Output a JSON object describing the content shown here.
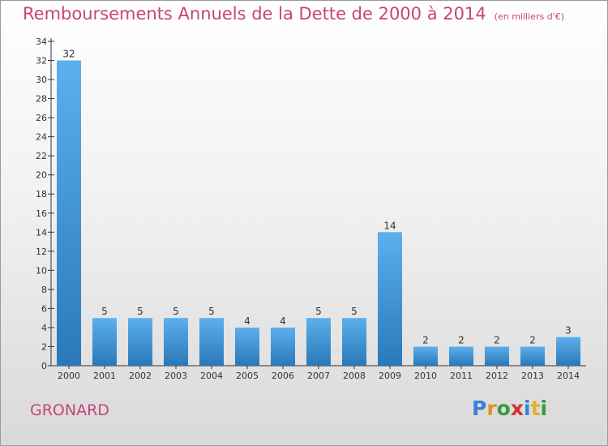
{
  "title": "Remboursements Annuels de la Dette de 2000 à 2014",
  "unit": "(en milliers d'€)",
  "commune": "GRONARD",
  "brand": {
    "letters": [
      {
        "ch": "P",
        "color": "#3b7fd6"
      },
      {
        "ch": "r",
        "color": "#e0912a"
      },
      {
        "ch": "o",
        "color": "#3b9a3b"
      },
      {
        "ch": "x",
        "color": "#d4332e"
      },
      {
        "ch": "i",
        "color": "#3b7fd6"
      },
      {
        "ch": "t",
        "color": "#e0b12a"
      },
      {
        "ch": "i",
        "color": "#3b9a3b"
      }
    ]
  },
  "colors": {
    "bar_top": "#5cb0ec",
    "bar_bottom": "#2a78b8",
    "title": "#c8437a"
  },
  "chart_data": {
    "type": "bar",
    "categories": [
      "2000",
      "2001",
      "2002",
      "2003",
      "2004",
      "2005",
      "2006",
      "2007",
      "2008",
      "2009",
      "2010",
      "2011",
      "2012",
      "2013",
      "2014"
    ],
    "values": [
      32,
      5,
      5,
      5,
      5,
      4,
      4,
      5,
      5,
      14,
      2,
      2,
      2,
      2,
      3
    ],
    "ylim": [
      0,
      34
    ],
    "yticks": [
      0,
      2,
      4,
      6,
      8,
      10,
      12,
      14,
      16,
      18,
      20,
      22,
      24,
      26,
      28,
      30,
      32,
      34
    ],
    "grid": false,
    "data_labels": true
  }
}
